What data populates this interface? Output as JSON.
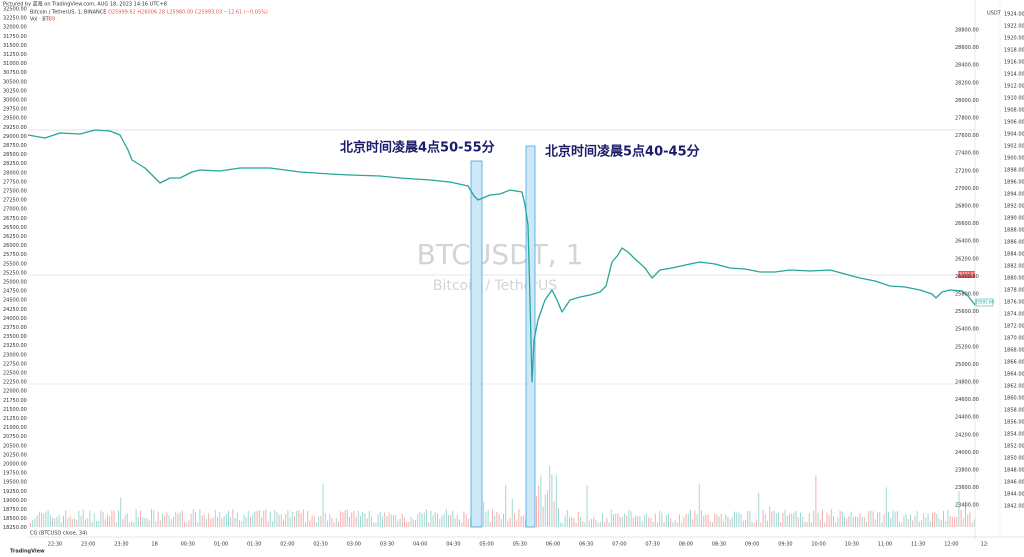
{
  "header": {
    "caption": "Pictured by 蓝海 on TradingView.com, AUG 18, 2023 14:16 UTC+8",
    "symbol": "Bitcoin / TetherUS, 1, BINANCE",
    "ohlc": "O25999.62 H26006.28 L25980.00 C25993.03 −12.61 (−0.05%)",
    "volume": "Vol · BTC",
    "volume_value": "28"
  },
  "watermark": {
    "title": "BTCUSDT, 1",
    "subtitle": "Bitcoin / TetherUS"
  },
  "annotations": [
    "北京时间凌晨4点50-55分",
    "北京时间凌晨5点40-45分"
  ],
  "left_axis": [
    "32500.00",
    "32250.00",
    "32000.00",
    "31750.00",
    "31500.00",
    "31250.00",
    "31000.00",
    "30750.00",
    "30500.00",
    "30250.00",
    "30000.00",
    "29750.00",
    "29500.00",
    "29250.00",
    "29000.00",
    "28750.00",
    "28500.00",
    "28250.00",
    "28000.00",
    "27750.00",
    "27500.00",
    "27250.00",
    "27000.00",
    "26750.00",
    "26500.00",
    "26250.00",
    "26000.00",
    "25750.00",
    "25500.00",
    "25250.00",
    "25000.00",
    "24750.00",
    "24500.00",
    "24250.00",
    "24000.00",
    "23750.00",
    "23500.00",
    "23250.00",
    "23000.00",
    "22750.00",
    "22500.00",
    "22250.00",
    "22000.00",
    "21750.00",
    "21500.00",
    "21250.00",
    "21000.00",
    "20750.00",
    "20500.00",
    "20250.00",
    "20000.00",
    "19750.00",
    "19500.00",
    "19250.00",
    "19000.00",
    "18750.00",
    "18500.00",
    "18250.00"
  ],
  "right_axis_unit": "USDT",
  "right_axis": [
    "28800.00",
    "28600.00",
    "28400.00",
    "28200.00",
    "28000.00",
    "27800.00",
    "27600.00",
    "27400.00",
    "27200.00",
    "27000.00",
    "26800.00",
    "26600.00",
    "26400.00",
    "26200.00",
    "26000.00",
    "25800.00",
    "25600.00",
    "25400.00",
    "25200.00",
    "25000.00",
    "24800.00",
    "24600.00",
    "24400.00",
    "24200.00",
    "24000.00",
    "23800.00",
    "23600.00",
    "23400.00"
  ],
  "right_axis_2": [
    "1924.00",
    "1922.00",
    "1920.00",
    "1918.00",
    "1916.00",
    "1914.00",
    "1912.00",
    "1910.00",
    "1908.00",
    "1906.00",
    "1904.00",
    "1902.00",
    "1900.00",
    "1898.00",
    "1896.00",
    "1894.00",
    "1892.00",
    "1890.00",
    "1888.00",
    "1886.00",
    "1884.00",
    "1882.00",
    "1880.00",
    "1878.00",
    "1876.00",
    "1874.00",
    "1872.00",
    "1870.00",
    "1868.00",
    "1866.00",
    "1864.00",
    "1862.00",
    "1860.00",
    "1858.00",
    "1856.00",
    "1854.00",
    "1852.00",
    "1850.00",
    "1848.00",
    "1846.00",
    "1844.00",
    "1842.00"
  ],
  "time_axis": [
    "22:30",
    "23:00",
    "23:30",
    "18",
    "00:30",
    "01:00",
    "01:30",
    "02:00",
    "02:30",
    "03:00",
    "03:30",
    "04:00",
    "04:30",
    "05:00",
    "05:30",
    "06:00",
    "06:30",
    "07:00",
    "07:30",
    "08:00",
    "08:30",
    "09:00",
    "09:30",
    "10:00",
    "10:30",
    "11:00",
    "11:30",
    "12:00",
    "12:"
  ],
  "price_tags": {
    "last": "26493.07",
    "current": "25992.60"
  },
  "indicator": "CG (BTCUSD close, 34)",
  "footer": "TradingView"
}
